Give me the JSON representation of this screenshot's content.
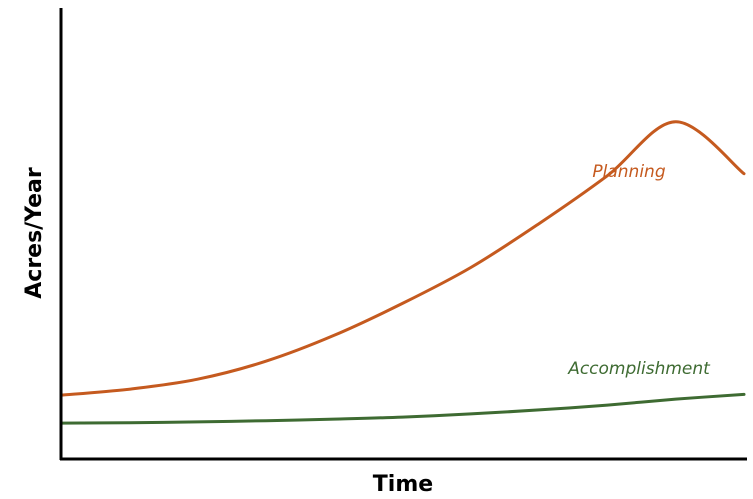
{
  "chart_data": {
    "type": "line",
    "title": "",
    "xlabel": "Time",
    "ylabel": "Acres/Year",
    "xlim": [
      0,
      100
    ],
    "ylim": [
      0,
      100
    ],
    "grid": false,
    "axis_ticks": false,
    "series": [
      {
        "name": "Planning",
        "color": "#c55a1f",
        "x": [
          0,
          10,
          20,
          30,
          40,
          50,
          60,
          70,
          80,
          90,
          100
        ],
        "y": [
          16,
          17.5,
          20,
          24.5,
          31,
          39,
          48,
          59,
          71,
          84.5,
          71.5
        ]
      },
      {
        "name": "Accomplishment",
        "color": "#3e6b32",
        "x": [
          0,
          10,
          20,
          30,
          40,
          50,
          60,
          70,
          80,
          90,
          100
        ],
        "y": [
          9,
          9.1,
          9.3,
          9.6,
          10,
          10.5,
          11.3,
          12.3,
          13.5,
          15,
          16.2
        ]
      }
    ]
  }
}
